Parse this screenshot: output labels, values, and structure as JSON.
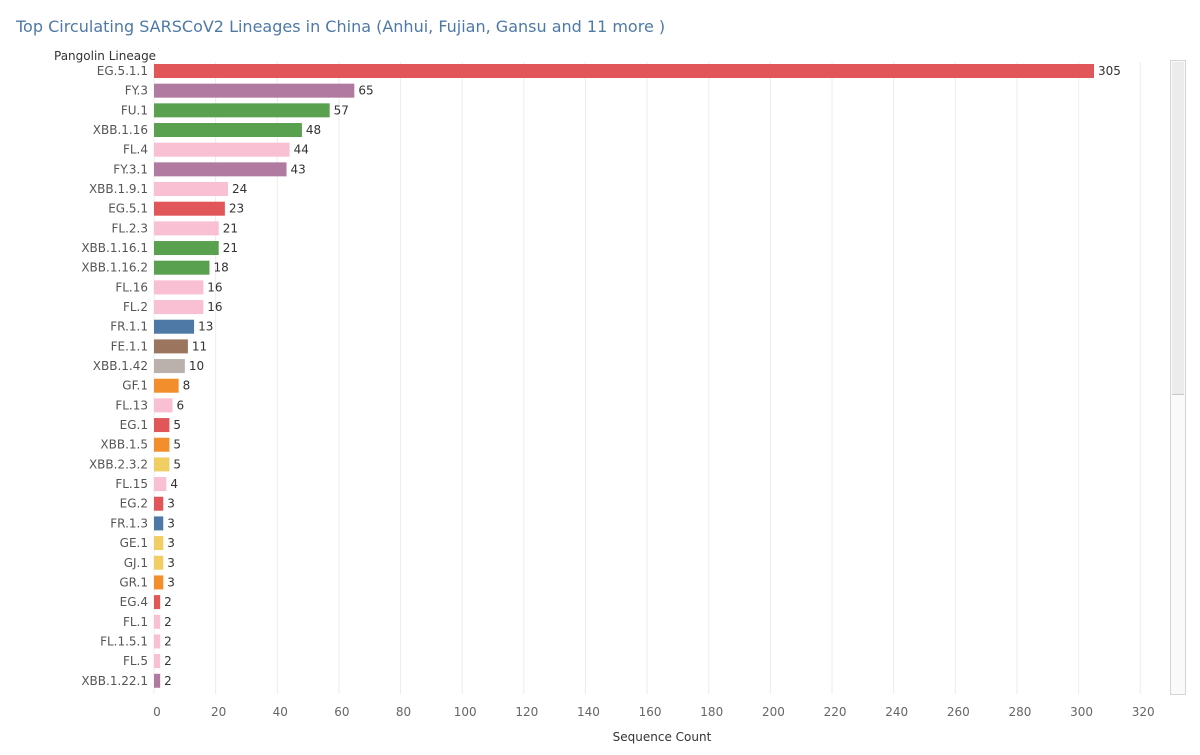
{
  "chart_data": {
    "type": "bar",
    "orientation": "horizontal",
    "title": "Top Circulating SARSCoV2 Lineages in China (Anhui, Fujian, Gansu and 11 more )",
    "ylabel": "Pangolin Lineage",
    "xlabel": "Sequence Count",
    "xlim": [
      0,
      320
    ],
    "xticks": [
      0,
      20,
      40,
      60,
      80,
      100,
      120,
      140,
      160,
      180,
      200,
      220,
      240,
      260,
      280,
      300,
      320
    ],
    "grid": true,
    "colors": {
      "red": "#e15759",
      "purple": "#b07aa1",
      "green": "#59a14f",
      "pink": "#f9bfd3",
      "blue": "#4e79a7",
      "brown": "#9c755f",
      "gray": "#bab0ac",
      "orange": "#f28e2b",
      "yellow": "#f1ce63"
    },
    "categories": [
      "EG.5.1.1",
      "FY.3",
      "FU.1",
      "XBB.1.16",
      "FL.4",
      "FY.3.1",
      "XBB.1.9.1",
      "EG.5.1",
      "FL.2.3",
      "XBB.1.16.1",
      "XBB.1.16.2",
      "FL.16",
      "FL.2",
      "FR.1.1",
      "FE.1.1",
      "XBB.1.42",
      "GF.1",
      "FL.13",
      "EG.1",
      "XBB.1.5",
      "XBB.2.3.2",
      "FL.15",
      "EG.2",
      "FR.1.3",
      "GE.1",
      "GJ.1",
      "GR.1",
      "EG.4",
      "FL.1",
      "FL.1.5.1",
      "FL.5",
      "XBB.1.22.1"
    ],
    "values": [
      305,
      65,
      57,
      48,
      44,
      43,
      24,
      23,
      21,
      21,
      18,
      16,
      16,
      13,
      11,
      10,
      8,
      6,
      5,
      5,
      5,
      4,
      3,
      3,
      3,
      3,
      3,
      2,
      2,
      2,
      2,
      2
    ],
    "bar_colors": [
      "red",
      "purple",
      "green",
      "green",
      "pink",
      "purple",
      "pink",
      "red",
      "pink",
      "green",
      "green",
      "pink",
      "pink",
      "blue",
      "brown",
      "gray",
      "orange",
      "pink",
      "red",
      "orange",
      "yellow",
      "pink",
      "red",
      "blue",
      "yellow",
      "yellow",
      "orange",
      "red",
      "pink",
      "pink",
      "pink",
      "purple"
    ]
  }
}
